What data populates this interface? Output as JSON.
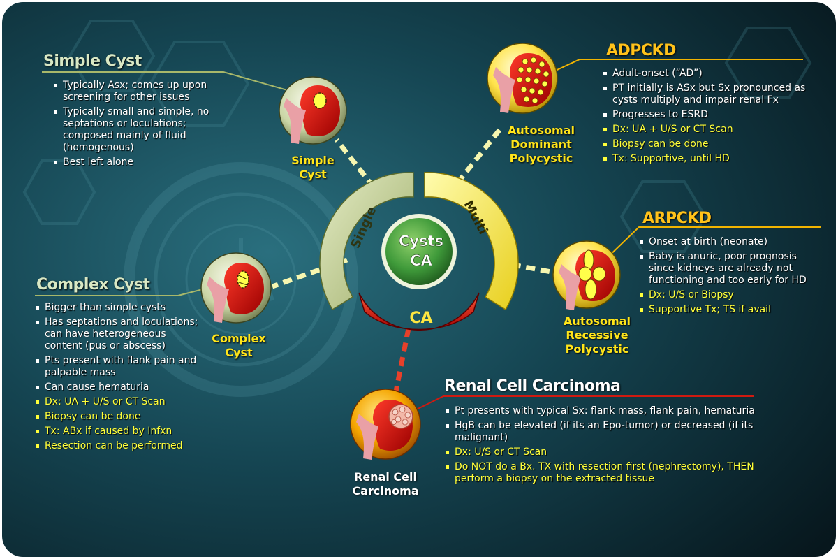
{
  "hub": {
    "line1": "Cysts",
    "line2": "CA"
  },
  "rings": {
    "single": "Single",
    "multi": "Multi",
    "ca": "CA"
  },
  "nodes": {
    "simple_cyst": [
      "Simple",
      "Cyst"
    ],
    "complex_cyst": [
      "Complex",
      "Cyst"
    ],
    "adpckd": [
      "Autosomal",
      "Dominant",
      "Polycystic"
    ],
    "arpckd": [
      "Autosomal",
      "Recessive",
      "Polycystic"
    ],
    "rcc": [
      "Renal Cell",
      "Carcinoma"
    ]
  },
  "sections": {
    "simple_cyst": {
      "title": "Simple Cyst",
      "points": [
        "Typically Asx; comes up upon screening for other issues",
        "Typically small and simple, no septations or loculations; composed mainly of fluid (homogenous)",
        "Best left alone"
      ]
    },
    "complex_cyst": {
      "title": "Complex Cyst",
      "points": [
        "Bigger than simple cysts",
        "Has septations and loculations; can have heterogeneous content (pus or abscess)",
        "Pts present with flank pain and palpable mass",
        "Can cause hematuria"
      ],
      "management": [
        "Dx: UA + U/S or CT Scan",
        "Biopsy can be done",
        "Tx: ABx if caused by Infxn",
        "Resection can be performed"
      ]
    },
    "adpckd": {
      "title": "ADPCKD",
      "points": [
        "Adult-onset (“AD”)",
        "PT initially is ASx but Sx pronounced as cysts multiply and impair renal Fx",
        "Progresses to ESRD"
      ],
      "management": [
        "Dx: UA + U/S or CT Scan",
        "Biopsy can be done",
        "Tx: Supportive, until HD"
      ]
    },
    "arpckd": {
      "title": "ARPCKD",
      "points": [
        "Onset at birth (neonate)",
        "Baby is anuric, poor prognosis since kidneys are already not functioning and too early for HD"
      ],
      "management": [
        "Dx: U/S or Biopsy",
        "Supportive Tx; TS if avail"
      ]
    },
    "rcc": {
      "title": "Renal Cell Carcinoma",
      "points": [
        "Pt presents with typical Sx: flank mass, flank pain, hematuria",
        "HgB can be elevated (if its an Epo-tumor) or decreased (if its malignant)"
      ],
      "management": [
        "Dx: U/S or CT Scan",
        "Do NOT do a Bx. TX with resection first (nephrectomy), THEN perform a biopsy on the extracted tissue"
      ]
    }
  },
  "colors": {
    "background": "#0c2a34",
    "single": "#c6d39a",
    "multi": "#fff250",
    "ca": "#e8150e",
    "hub": "#3f9a3a",
    "kidney": "#d51010",
    "note_yellow": "#ffff3a",
    "title_gold": "#ffc21a"
  }
}
